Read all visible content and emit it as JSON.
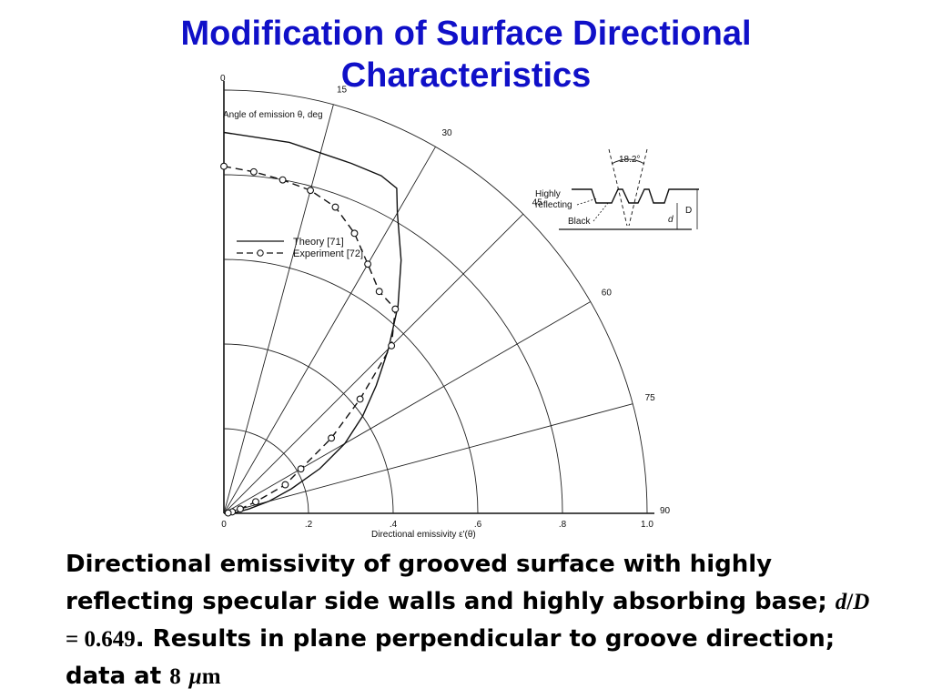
{
  "slide": {
    "title_line1": "Modification of Surface Directional",
    "title_line2": "Characteristics"
  },
  "caption": {
    "part1": "Directional emissivity of grooved surface with highly reflecting specular side walls and highly absorbing base; ",
    "formula_var": "d",
    "formula_slash": "/",
    "formula_var2": "D",
    "formula_eq": " = 0.649",
    "part2": ". Results in plane perpendicular to groove direction; data at ",
    "wavelength_value": "8",
    "wavelength_mu": "μ",
    "wavelength_unit": "m"
  },
  "chart_data": {
    "type": "polar",
    "angle_axis_label": "Angle of emission θ, deg",
    "radial_axis_label": "Directional emissivity ε'(θ)",
    "angle_ticks": [
      0,
      15,
      30,
      45,
      60,
      75,
      90
    ],
    "radial_ticks": [
      "0",
      ".2",
      ".4",
      ".6",
      ".8",
      "1.0"
    ],
    "radial_range": [
      0,
      1.0
    ],
    "angle_range_deg": [
      0,
      90
    ],
    "series": [
      {
        "name": "Theory [71]",
        "style": "solid",
        "points": [
          {
            "theta": 0,
            "emissivity": 0.9
          },
          {
            "theta": 10,
            "emissivity": 0.89
          },
          {
            "theta": 20,
            "emissivity": 0.88
          },
          {
            "theta": 25,
            "emissivity": 0.88
          },
          {
            "theta": 28,
            "emissivity": 0.87
          },
          {
            "theta": 30,
            "emissivity": 0.82
          },
          {
            "theta": 35,
            "emissivity": 0.73
          },
          {
            "theta": 40,
            "emissivity": 0.64
          },
          {
            "theta": 45,
            "emissivity": 0.55
          },
          {
            "theta": 50,
            "emissivity": 0.47
          },
          {
            "theta": 55,
            "emissivity": 0.4
          },
          {
            "theta": 60,
            "emissivity": 0.33
          },
          {
            "theta": 65,
            "emissivity": 0.25
          },
          {
            "theta": 70,
            "emissivity": 0.17
          },
          {
            "theta": 75,
            "emissivity": 0.11
          },
          {
            "theta": 80,
            "emissivity": 0.06
          },
          {
            "theta": 85,
            "emissivity": 0.03
          },
          {
            "theta": 90,
            "emissivity": 0.0
          }
        ]
      },
      {
        "name": "Experiment [72]",
        "style": "dashed-circles",
        "points": [
          {
            "theta": 0,
            "emissivity": 0.82
          },
          {
            "theta": 5,
            "emissivity": 0.81
          },
          {
            "theta": 10,
            "emissivity": 0.8
          },
          {
            "theta": 15,
            "emissivity": 0.79
          },
          {
            "theta": 20,
            "emissivity": 0.77
          },
          {
            "theta": 25,
            "emissivity": 0.73
          },
          {
            "theta": 30,
            "emissivity": 0.68
          },
          {
            "theta": 35,
            "emissivity": 0.64
          },
          {
            "theta": 40,
            "emissivity": 0.63
          },
          {
            "theta": 45,
            "emissivity": 0.56
          },
          {
            "theta": 50,
            "emissivity": 0.42
          },
          {
            "theta": 55,
            "emissivity": 0.31
          },
          {
            "theta": 60,
            "emissivity": 0.21
          },
          {
            "theta": 65,
            "emissivity": 0.16
          },
          {
            "theta": 70,
            "emissivity": 0.08
          },
          {
            "theta": 75,
            "emissivity": 0.04
          },
          {
            "theta": 80,
            "emissivity": 0.02
          },
          {
            "theta": 85,
            "emissivity": 0.01
          }
        ]
      }
    ],
    "legend": {
      "placement": "left-inside",
      "entries": [
        "Theory [71]",
        "Experiment [72]"
      ]
    },
    "inset": {
      "angle_label": "18.2°",
      "labels": [
        "Highly reflecting",
        "Black"
      ],
      "dimension_labels": [
        "D",
        "d"
      ]
    }
  }
}
